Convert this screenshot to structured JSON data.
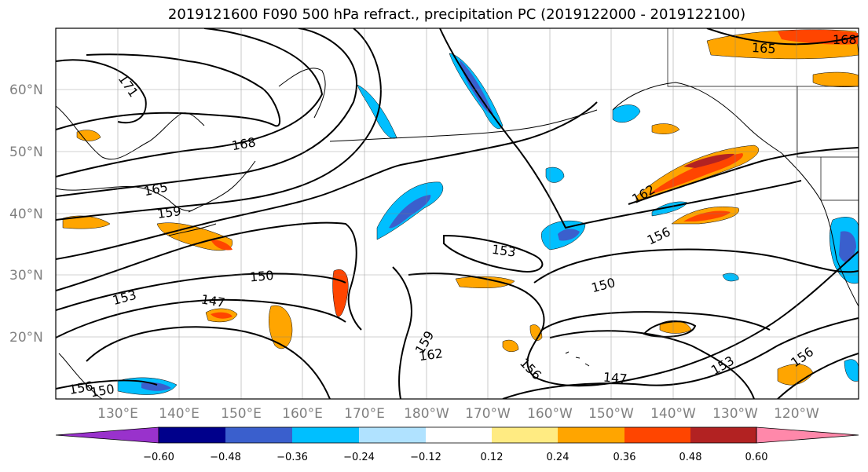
{
  "title": "2019121600 F090 500 hPa refract., precipitation PC (2019122000 - 2019122100)",
  "lat_labels": [
    "60°N",
    "50°N",
    "40°N",
    "30°N",
    "20°N"
  ],
  "lon_labels": [
    "130°E",
    "140°E",
    "150°E",
    "160°E",
    "170°E",
    "180°W",
    "170°W",
    "160°W",
    "150°W",
    "140°W",
    "130°W",
    "120°W"
  ],
  "contour_labels": [
    "171",
    "168",
    "165",
    "159",
    "153",
    "150",
    "147",
    "153",
    "150",
    "156",
    "162",
    "159",
    "162",
    "156",
    "147",
    "153",
    "156",
    "165",
    "168",
    "156",
    "150"
  ],
  "colorbar": {
    "ticks": [
      "−0.60",
      "−0.48",
      "−0.36",
      "−0.24",
      "−0.12",
      "0.12",
      "0.24",
      "0.36",
      "0.48",
      "0.60"
    ],
    "colors": [
      "#9932cc",
      "#00008b",
      "#3a5fcd",
      "#00bfff",
      "#b0e2ff",
      "#ffffff",
      "#ffeb82",
      "#ffa500",
      "#ff4500",
      "#b22222",
      "#ff88aa"
    ]
  }
}
